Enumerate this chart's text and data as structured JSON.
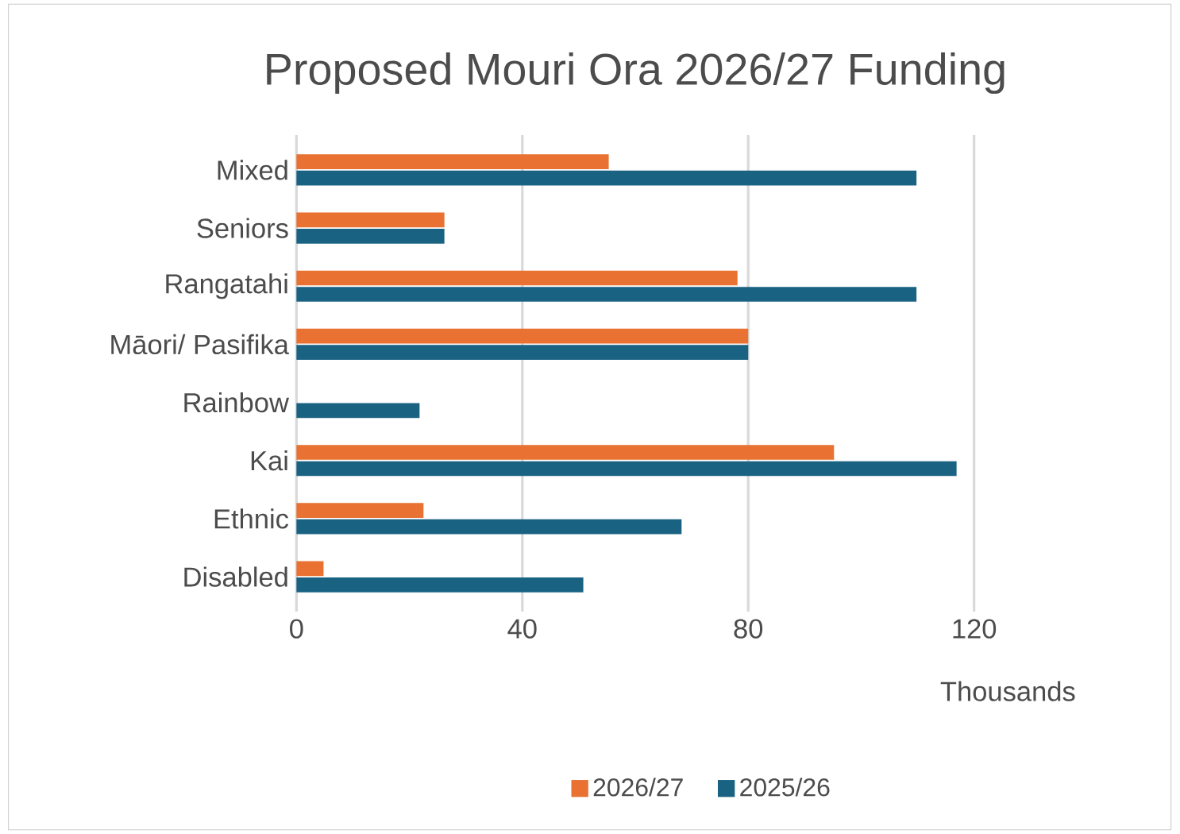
{
  "chart_data": {
    "type": "bar",
    "orientation": "horizontal",
    "title": "Proposed Mouri Ora 2026/27 Funding",
    "xlabel": "Thousands",
    "categories": [
      "Mixed",
      "Seniors",
      "Rangatahi",
      "Māori/ Pasifika",
      "Rainbow",
      "Kai",
      "Ethnic",
      "Disabled"
    ],
    "series": [
      {
        "name": "2026/27",
        "color": "#e97132",
        "values": [
          55.3,
          26.2,
          78.1,
          80,
          0,
          95.2,
          22.5,
          4.8
        ]
      },
      {
        "name": "2025/26",
        "color": "#1a6282",
        "values": [
          109.8,
          26.2,
          109.8,
          80,
          21.8,
          116.9,
          68.2,
          50.8
        ]
      }
    ],
    "xlim": [
      0,
      120
    ],
    "xticks": [
      0,
      40,
      80,
      120
    ],
    "grid": "x",
    "legend": "bottom"
  }
}
